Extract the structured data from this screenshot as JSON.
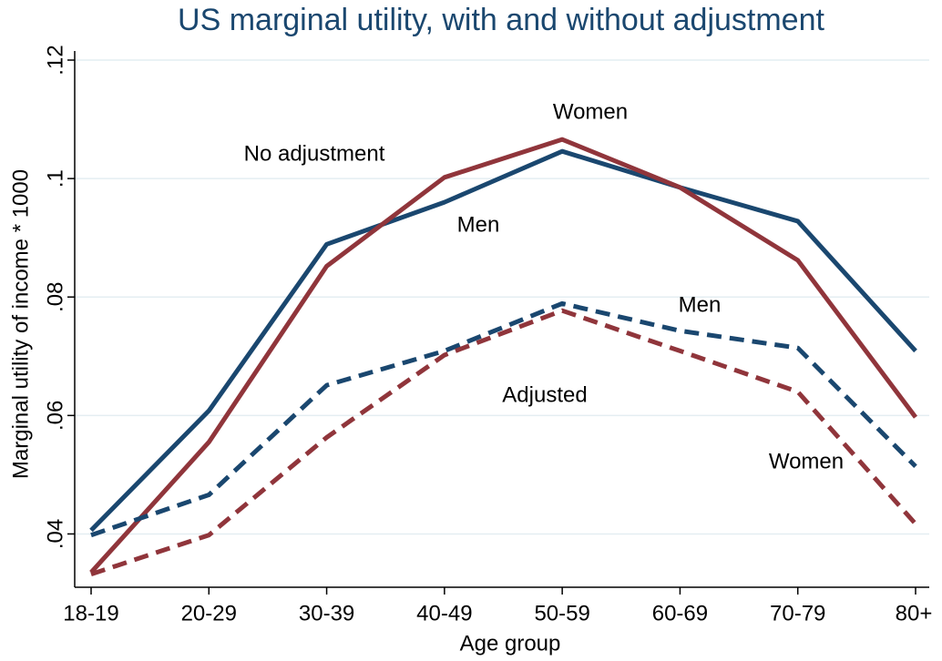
{
  "chart_data": {
    "type": "line",
    "title": "US marginal utility, with and without adjustment",
    "x_label": "Age group",
    "y_label": "Marginal utility of income * 1000",
    "categories": [
      "18-19",
      "20-29",
      "30-39",
      "40-49",
      "50-59",
      "60-69",
      "70-79",
      "80+"
    ],
    "series": [
      {
        "color": "#1a476f",
        "dashed": false,
        "values": [
          0.0406,
          0.0608,
          0.0889,
          0.096,
          0.1046,
          0.0985,
          0.0928,
          0.0709
        ]
      },
      {
        "color": "#90353b",
        "dashed": false,
        "values": [
          0.0335,
          0.0555,
          0.0852,
          0.1002,
          0.1066,
          0.0985,
          0.0862,
          0.0597
        ]
      },
      {
        "color": "#1a476f",
        "dashed": true,
        "values": [
          0.0398,
          0.0466,
          0.0651,
          0.0709,
          0.0789,
          0.0743,
          0.0714,
          0.0514
        ]
      },
      {
        "color": "#90353b",
        "dashed": true,
        "values": [
          0.0332,
          0.0398,
          0.0563,
          0.0702,
          0.0777,
          0.0709,
          0.064,
          0.0417
        ]
      }
    ],
    "annotations": [
      "No adjustment",
      "Women",
      "Men",
      "Men",
      "Adjusted",
      "Women"
    ],
    "ylim": [
      0.031,
      0.12
    ],
    "yticks": [
      {
        "value": 0.04,
        "label": ".04"
      },
      {
        "value": 0.06,
        "label": ".06"
      },
      {
        "value": 0.08,
        "label": ".08"
      },
      {
        "value": 0.1,
        "label": ".1"
      },
      {
        "value": 0.12,
        "label": ".12"
      }
    ],
    "grid": true
  }
}
